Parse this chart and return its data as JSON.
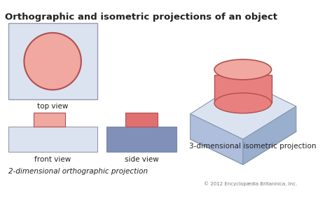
{
  "title": "Orthographic and isometric projections of an object",
  "title_fontsize": 9.5,
  "bg_color": "#ffffff",
  "label_top_view": "top view",
  "label_front_view": "front view",
  "label_side_view": "side view",
  "label_3d": "3-dimensional isometric projection",
  "label_2d": "2-dimensional orthographic projection",
  "copyright": "© 2012 Encyclopædia Britannica, Inc.",
  "box_fill_top": "#dce3f0",
  "box_fill_left": "#b0bedd",
  "box_fill_right": "#9aaece",
  "ellipse_fill": "#f0a8a0",
  "ellipse_edge": "#b05050",
  "rect_fill_front": "#f0a8a0",
  "rect_fill_side": "#e07070",
  "cyl_fill": "#e88080",
  "cyl_top_fill": "#f0a8a0",
  "side_box_fill": "#8090b8",
  "text_color": "#222222",
  "edge_color": "#8899aa"
}
